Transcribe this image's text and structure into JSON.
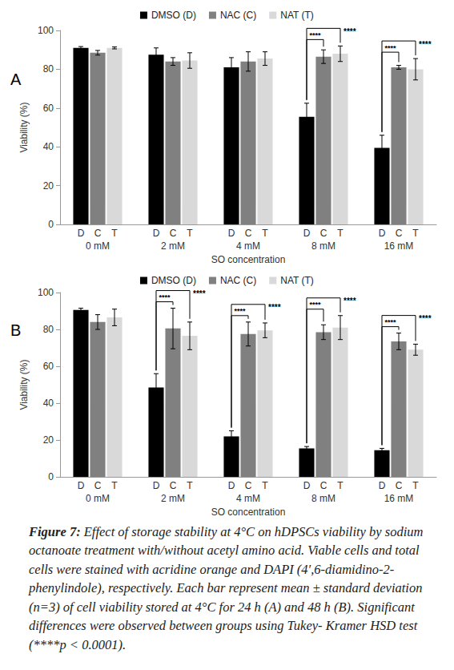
{
  "caption_label": "Figure 7:",
  "caption": "Effect of storage stability at 4°C on hDPSCs viability by sodium octanoate treatment with/without acetyl amino acid. Viable cells and total cells were stained with acridine orange and DAPI (4′,6-diamidino-2-phenylindole), respectively. Each bar represent mean ± standard deviation (n=3) of cell viability stored at 4°C for 24 h (A) and 48 h (B). Significant differences were observed between groups using Tukey- Kramer HSD test (****p < 0.0001).",
  "chart_data": [
    {
      "type": "bar",
      "title": "A",
      "x_label": "SO concentration",
      "y_label": "Viability (%)",
      "categories": [
        "0 mM",
        "2 mM",
        "4 mM",
        "8 mM",
        "16 mM"
      ],
      "series": [
        {
          "name": "DMSO (D)",
          "abbreviation": "D",
          "color": "#000000",
          "values": [
            91,
            87.5,
            81,
            55.5,
            39.5
          ],
          "errors": [
            0.7,
            3.5,
            5,
            7,
            6.5
          ]
        },
        {
          "name": "NAC (C)",
          "abbreviation": "C",
          "color": "#808080",
          "values": [
            88.5,
            84,
            84,
            86.5,
            81
          ],
          "errors": [
            1.2,
            2,
            5,
            3.5,
            1
          ]
        },
        {
          "name": "NAT (T)",
          "abbreviation": "T",
          "color": "#d9d9d9",
          "values": [
            91,
            84.5,
            85.5,
            88,
            80
          ],
          "errors": [
            0.5,
            4,
            3.5,
            4,
            5.5
          ]
        }
      ],
      "ylim": [
        0,
        100
      ],
      "yticks": [
        0,
        20,
        40,
        60,
        80,
        100
      ],
      "grid": false,
      "legend": "top",
      "annotations": [
        {
          "category": "8 mM",
          "from": "DMSO (D)",
          "to": "NAC (C)",
          "text": "****"
        },
        {
          "category": "8 mM",
          "from": "DMSO (D)",
          "to": "NAT (T)",
          "text": "****"
        },
        {
          "category": "16 mM",
          "from": "DMSO (D)",
          "to": "NAC (C)",
          "text": "****"
        },
        {
          "category": "16 mM",
          "from": "DMSO (D)",
          "to": "NAT (T)",
          "text": "****"
        }
      ]
    },
    {
      "type": "bar",
      "title": "B",
      "x_label": "SO concentration",
      "y_label": "Viability (%)",
      "categories": [
        "0 mM",
        "2 mM",
        "4 mM",
        "8 mM",
        "16 mM"
      ],
      "series": [
        {
          "name": "DMSO (D)",
          "abbreviation": "D",
          "color": "#000000",
          "values": [
            90.5,
            48.5,
            22,
            15.5,
            14.5
          ],
          "errors": [
            1,
            7.5,
            3,
            1,
            1
          ]
        },
        {
          "name": "NAC (C)",
          "abbreviation": "C",
          "color": "#808080",
          "values": [
            84,
            80.5,
            77.5,
            78.5,
            73.5
          ],
          "errors": [
            4,
            11,
            6.5,
            4,
            4.5
          ]
        },
        {
          "name": "NAT (T)",
          "abbreviation": "T",
          "color": "#d9d9d9",
          "values": [
            86.5,
            76.5,
            79.5,
            81,
            69
          ],
          "errors": [
            4.5,
            7.5,
            4,
            6.5,
            3
          ]
        }
      ],
      "ylim": [
        0,
        100
      ],
      "yticks": [
        0,
        20,
        40,
        60,
        80,
        100
      ],
      "grid": false,
      "legend": "top",
      "annotations": [
        {
          "category": "2 mM",
          "from": "DMSO (D)",
          "to": "NAC (C)",
          "text": "****"
        },
        {
          "category": "2 mM",
          "from": "DMSO (D)",
          "to": "NAT (T)",
          "text": "****"
        },
        {
          "category": "4 mM",
          "from": "DMSO (D)",
          "to": "NAC (C)",
          "text": "****"
        },
        {
          "category": "4 mM",
          "from": "DMSO (D)",
          "to": "NAT (T)",
          "text": "****"
        },
        {
          "category": "8 mM",
          "from": "DMSO (D)",
          "to": "NAC (C)",
          "text": "****"
        },
        {
          "category": "8 mM",
          "from": "DMSO (D)",
          "to": "NAT (T)",
          "text": "****"
        },
        {
          "category": "16 mM",
          "from": "DMSO (D)",
          "to": "NAC (C)",
          "text": "****"
        },
        {
          "category": "16 mM",
          "from": "DMSO (D)",
          "to": "NAT (T)",
          "text": "****"
        }
      ]
    }
  ]
}
